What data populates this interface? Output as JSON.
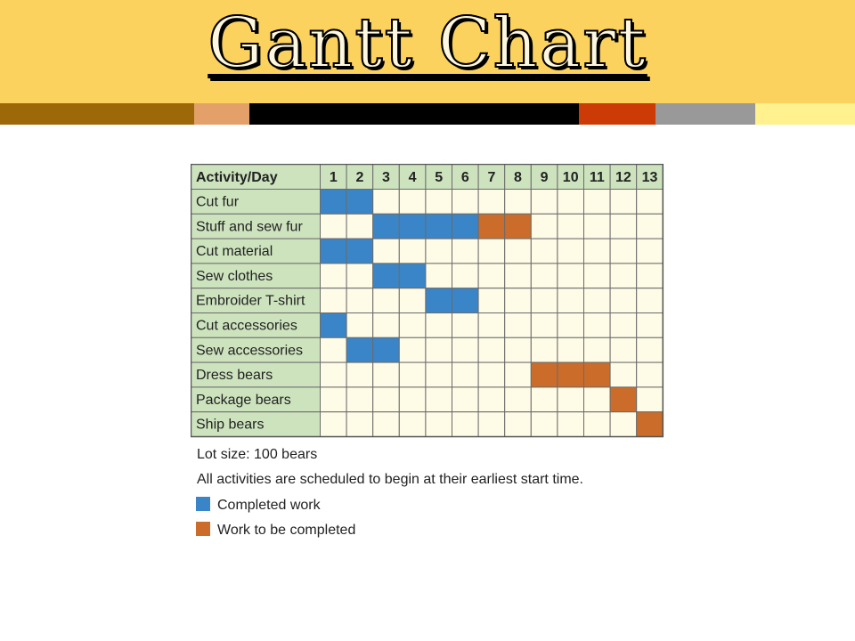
{
  "page": {
    "title": "Gantt Chart"
  },
  "colors": {
    "band": "#fcd25e",
    "strip": [
      "#9c6808",
      "#e3a169",
      "#000000",
      "#cc3a06",
      "#999999",
      "#fff18d"
    ],
    "header_bg": "#cde3be",
    "cell_bg": "#fefbe6",
    "completed": "#3a85c7",
    "to_complete": "#cb6c2a",
    "grid": "#6b6b6b"
  },
  "chart_data": {
    "type": "table",
    "header_label": "Activity/Day",
    "days": [
      "1",
      "2",
      "3",
      "4",
      "5",
      "6",
      "7",
      "8",
      "9",
      "10",
      "11",
      "12",
      "13"
    ],
    "activities": [
      {
        "name": "Cut fur",
        "completed": [
          1,
          2
        ],
        "to_complete": []
      },
      {
        "name": "Stuff and sew fur",
        "completed": [
          3,
          4,
          5,
          6
        ],
        "to_complete": [
          7,
          8
        ]
      },
      {
        "name": "Cut material",
        "completed": [
          1,
          2
        ],
        "to_complete": []
      },
      {
        "name": "Sew clothes",
        "completed": [
          3,
          4
        ],
        "to_complete": []
      },
      {
        "name": "Embroider T-shirt",
        "completed": [
          5,
          6
        ],
        "to_complete": []
      },
      {
        "name": "Cut accessories",
        "completed": [
          1
        ],
        "to_complete": []
      },
      {
        "name": "Sew accessories",
        "completed": [
          2,
          3
        ],
        "to_complete": []
      },
      {
        "name": "Dress bears",
        "completed": [],
        "to_complete": [
          9,
          10,
          11
        ]
      },
      {
        "name": "Package bears",
        "completed": [],
        "to_complete": [
          12
        ]
      },
      {
        "name": "Ship bears",
        "completed": [],
        "to_complete": [
          13
        ]
      }
    ],
    "notes": [
      "Lot size: 100 bears",
      "All activities are scheduled to begin at their earliest start time."
    ],
    "legend": [
      {
        "label": "Completed work",
        "status": "completed"
      },
      {
        "label": "Work to be completed",
        "status": "to_complete"
      }
    ]
  }
}
